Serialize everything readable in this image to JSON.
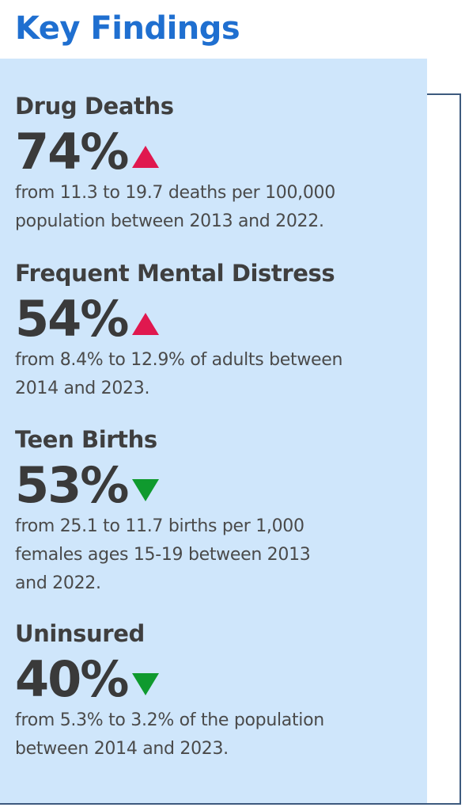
{
  "title": "Key Findings",
  "findings": [
    {
      "heading": "Drug Deaths",
      "percent": "74%",
      "direction": "up",
      "indicator_color": "#e0184f",
      "desc_line1": "from 11.3 to 19.7 deaths per 100,000",
      "desc_line2": "population between 2013 and 2022.",
      "desc_line3": ""
    },
    {
      "heading": "Frequent Mental Distress",
      "percent": "54%",
      "direction": "up",
      "indicator_color": "#e0184f",
      "desc_line1": "from 8.4% to 12.9% of adults between",
      "desc_line2": "2014 and 2023.",
      "desc_line3": ""
    },
    {
      "heading": "Teen Births",
      "percent": "53%",
      "direction": "down",
      "indicator_color": "#0f9a2e",
      "desc_line1": "from 25.1 to 11.7 births per 1,000",
      "desc_line2": "females ages 15-19 between 2013",
      "desc_line3": "and 2022."
    },
    {
      "heading": "Uninsured",
      "percent": "40%",
      "direction": "down",
      "indicator_color": "#0f9a2e",
      "desc_line1": "from 5.3% to 3.2% of the population",
      "desc_line2": "between 2014 and 2023.",
      "desc_line3": ""
    }
  ],
  "colors": {
    "title": "#1f6fd0",
    "panel_background": "#cfe6fb",
    "frame_line": "#3d5a7e",
    "increase": "#e0184f",
    "decrease": "#0f9a2e"
  }
}
